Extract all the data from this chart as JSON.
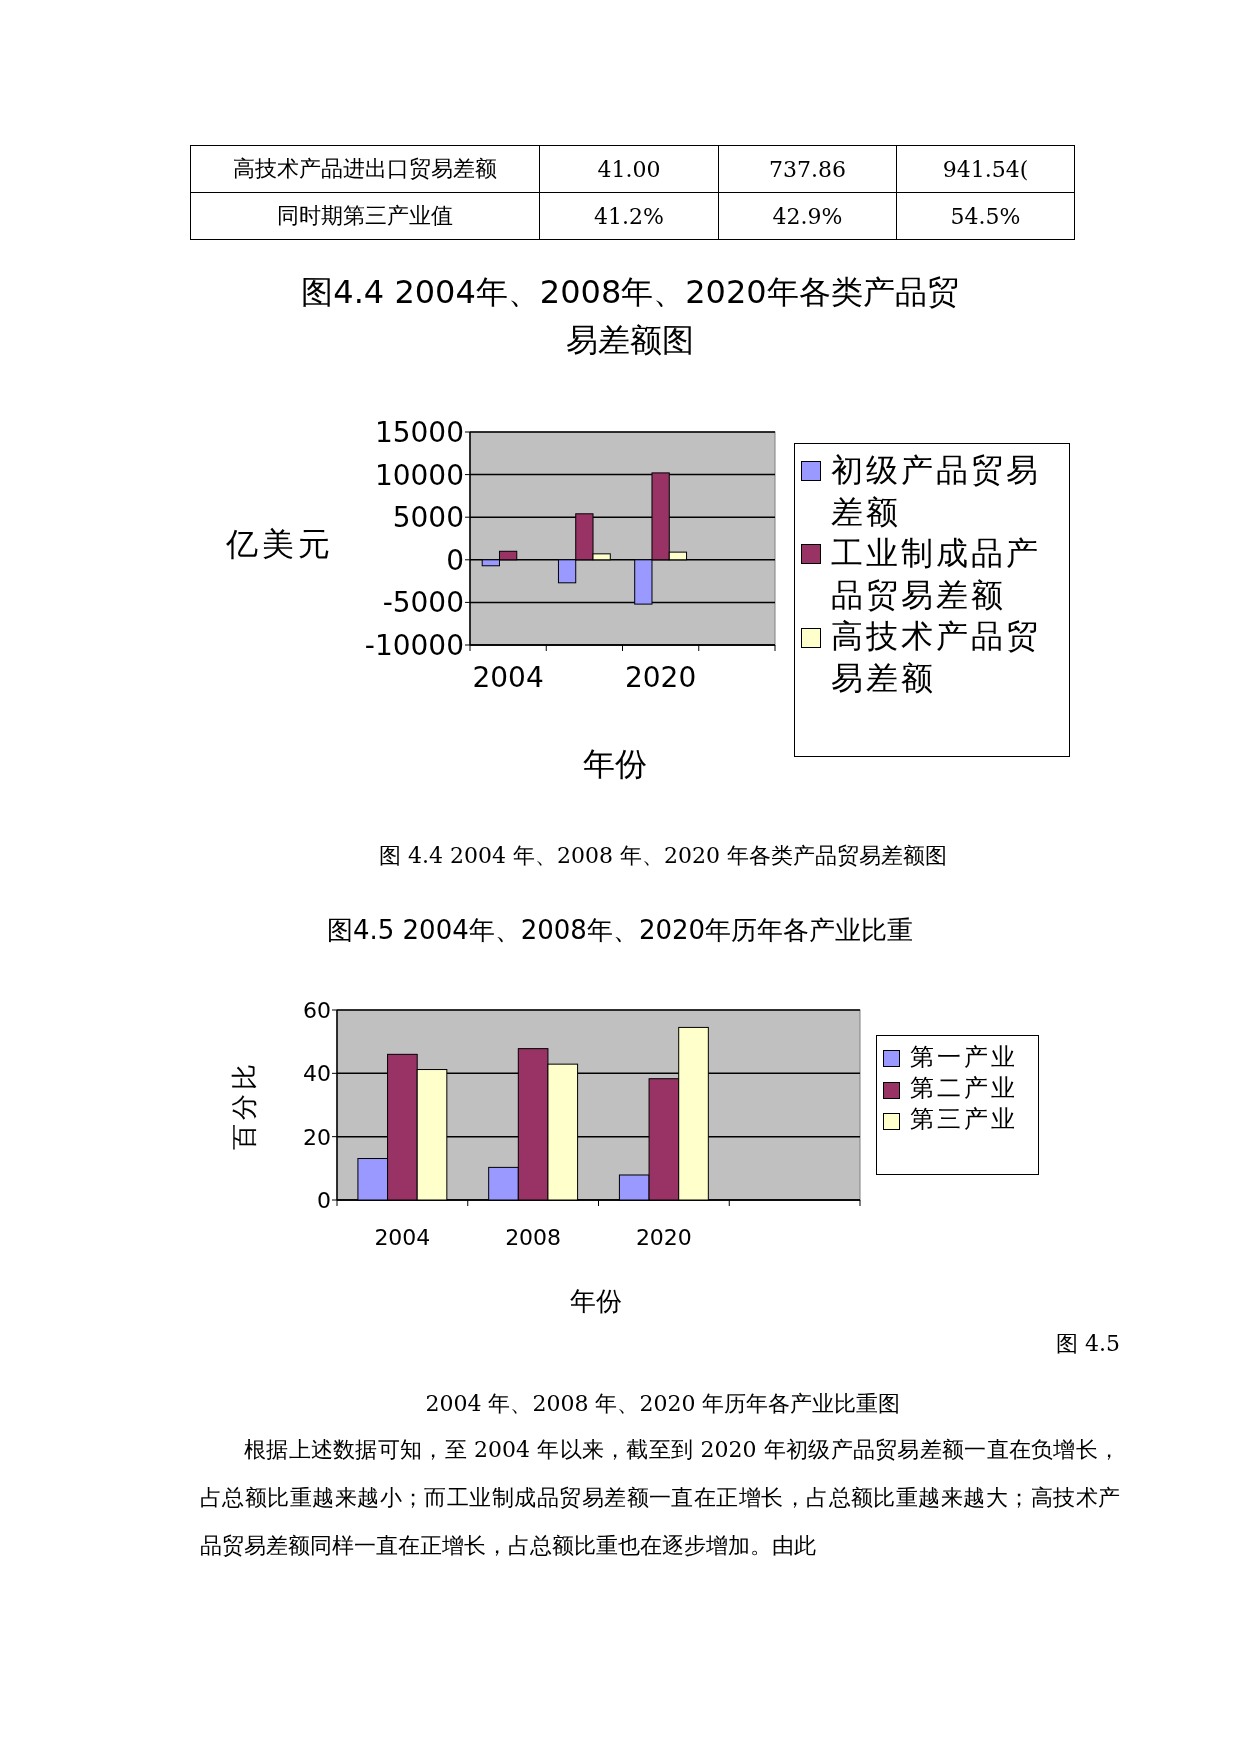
{
  "chart_data": [
    {
      "type": "other",
      "annotations": [
        "高技术产品进出口贸易差额",
        "41.00",
        "737.86",
        "941.54(",
        "同时期第三产业值",
        "41.2%",
        "42.9%",
        "54.5%"
      ]
    },
    {
      "type": "bar",
      "title": "图4.4 2004年、2008年、2020年各类产品贸易差额图",
      "xlabel": "年份",
      "ylabel": "亿美元",
      "categories": [
        "2004",
        null,
        "2020",
        null
      ],
      "series": [
        {
          "name": "初级产品贸易差额",
          "color": "#9999ff",
          "values": [
            -700,
            -2700,
            -5200,
            null
          ]
        },
        {
          "name": "工业制成品产品贸易差额",
          "color": "#993366",
          "values": [
            1000,
            5400,
            10200,
            null
          ]
        },
        {
          "name": "高技术产品贸易差额",
          "color": "#ffffcc",
          "values": [
            null,
            700,
            900,
            null
          ]
        }
      ],
      "ylim": [
        -10000,
        15000
      ],
      "yticks": [
        -10000,
        -5000,
        0,
        5000,
        10000,
        15000
      ],
      "grid": "y",
      "legend": "right",
      "annotations": [
        "图 4.4 2004 年、2008 年、2020 年各类产品贸易差额图"
      ]
    },
    {
      "type": "bar",
      "title": "图4.5 2004年、2008年、2020年历年各产业比重",
      "xlabel": "年份",
      "ylabel": "百分比",
      "categories": [
        "2004",
        "2008",
        "2020",
        null
      ],
      "series": [
        {
          "name": "第一产业",
          "color": "#9999ff",
          "values": [
            13.1,
            10.3,
            7.9,
            null
          ]
        },
        {
          "name": "第二产业",
          "color": "#993366",
          "values": [
            46,
            47.8,
            38.3,
            null
          ]
        },
        {
          "name": "第三产业",
          "color": "#ffffcc",
          "values": [
            41.2,
            42.9,
            54.5,
            null
          ]
        }
      ],
      "ylim": [
        0,
        60
      ],
      "yticks": [
        0,
        20,
        40,
        60
      ],
      "grid": "y",
      "legend": "right",
      "annotations": [
        "图 4.5",
        "2004 年、2008 年、2020 年历年各产业比重图",
        "根据上述数据可知，至 2004 年以来，截至到 2020 年初级产品贸易差额一直在负增长，占总额比重越来越小；而工业制成品贸易差额一直在正增长，占总额比重越来越大；高技术产品贸易差额同样一直在正增长，占总额比重也在逐步增加。由此"
      ]
    }
  ]
}
